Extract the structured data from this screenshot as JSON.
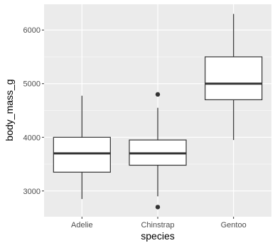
{
  "chart_data": {
    "type": "box",
    "title": "",
    "xlabel": "species",
    "ylabel": "body_mass_g",
    "categories": [
      "Adelie",
      "Chinstrap",
      "Gentoo"
    ],
    "boxes": [
      {
        "category": "Adelie",
        "whisker_low": 2850,
        "q1": 3350,
        "median": 3700,
        "q3": 4000,
        "whisker_high": 4775,
        "outliers": []
      },
      {
        "category": "Chinstrap",
        "whisker_low": 2900,
        "q1": 3480,
        "median": 3700,
        "q3": 3950,
        "whisker_high": 4550,
        "outliers": [
          2700,
          4800
        ]
      },
      {
        "category": "Gentoo",
        "whisker_low": 3950,
        "q1": 4700,
        "median": 5000,
        "q3": 5500,
        "whisker_high": 6300,
        "outliers": []
      }
    ],
    "y_ticks": [
      3000,
      4000,
      5000,
      6000
    ],
    "y_tick_labels": [
      "3000",
      "4000",
      "5000",
      "6000"
    ],
    "ylim": [
      2520,
      6480
    ],
    "grid": true,
    "panel_color": "#ebebeb",
    "box_fill": "#ffffff",
    "line_color": "#333333",
    "grid_color": "#ffffff"
  }
}
